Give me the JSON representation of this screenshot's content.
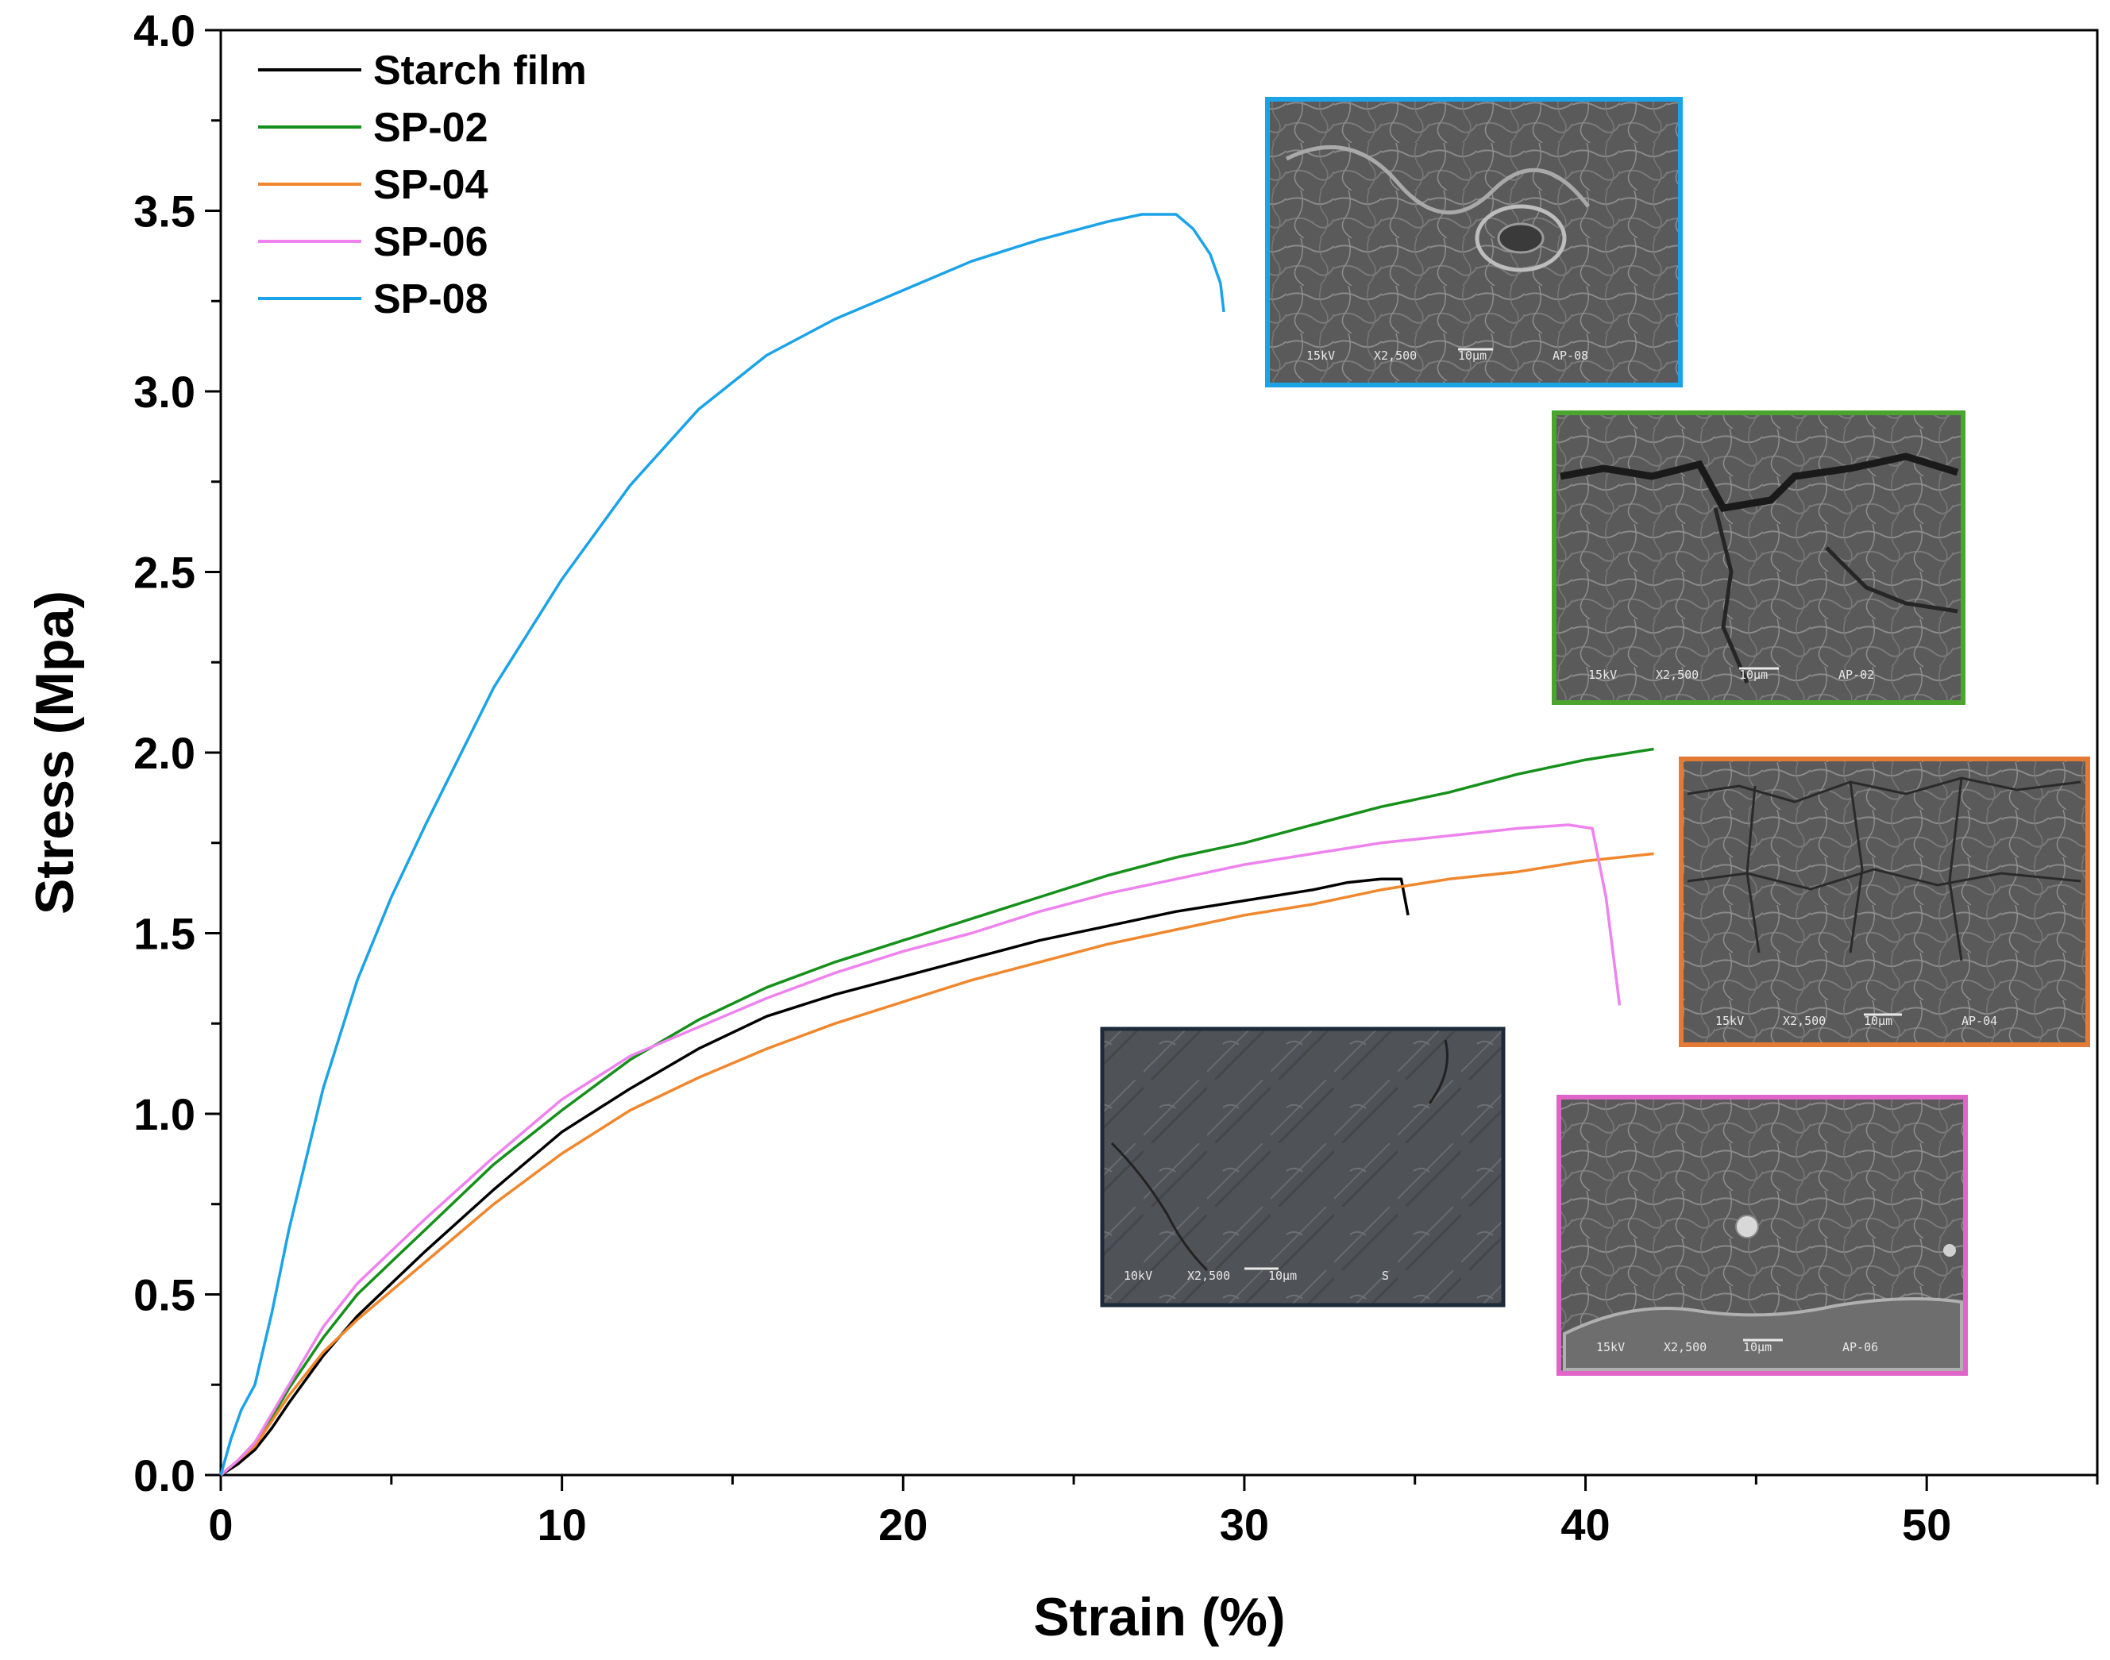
{
  "chart_data": {
    "type": "line",
    "title": "",
    "xlabel": "Strain (%)",
    "ylabel": "Stress (Mpa)",
    "xlim": [
      0,
      55
    ],
    "ylim": [
      0,
      4.0
    ],
    "x_ticks": [
      0,
      10,
      20,
      30,
      40,
      50
    ],
    "x_tick_labels": [
      "0",
      "10",
      "20",
      "30",
      "40",
      "50"
    ],
    "y_ticks": [
      0,
      0.5,
      1.0,
      1.5,
      2.0,
      2.5,
      3.0,
      3.5,
      4.0
    ],
    "y_tick_labels": [
      "0.0",
      "0.5",
      "1.0",
      "1.5",
      "2.0",
      "2.5",
      "3.0",
      "3.5",
      "4.0"
    ],
    "grid": false,
    "legend_position": "top-left",
    "series": [
      {
        "name": "Starch film",
        "color": "#000000",
        "x": [
          0,
          0.5,
          1,
          1.5,
          2,
          3,
          4,
          5,
          6,
          8,
          10,
          12,
          14,
          16,
          18,
          20,
          22,
          24,
          26,
          28,
          30,
          32,
          33,
          34,
          34.6,
          34.8
        ],
        "y": [
          0,
          0.03,
          0.07,
          0.13,
          0.2,
          0.33,
          0.44,
          0.53,
          0.62,
          0.79,
          0.95,
          1.07,
          1.18,
          1.27,
          1.33,
          1.38,
          1.43,
          1.48,
          1.52,
          1.56,
          1.59,
          1.62,
          1.64,
          1.65,
          1.65,
          1.55
        ]
      },
      {
        "name": "SP-02",
        "color": "#15901a",
        "x": [
          0,
          0.5,
          1,
          1.5,
          2,
          3,
          4,
          5,
          6,
          8,
          10,
          12,
          14,
          16,
          18,
          20,
          22,
          24,
          26,
          28,
          30,
          32,
          34,
          36,
          38,
          40,
          42
        ],
        "y": [
          0,
          0.04,
          0.09,
          0.16,
          0.24,
          0.38,
          0.5,
          0.59,
          0.68,
          0.86,
          1.01,
          1.15,
          1.26,
          1.35,
          1.42,
          1.48,
          1.54,
          1.6,
          1.66,
          1.71,
          1.75,
          1.8,
          1.85,
          1.89,
          1.94,
          1.98,
          2.01
        ]
      },
      {
        "name": "SP-04",
        "color": "#f0872c",
        "x": [
          0,
          0.5,
          1,
          1.5,
          2,
          3,
          4,
          5,
          6,
          8,
          10,
          12,
          14,
          16,
          18,
          20,
          22,
          24,
          26,
          28,
          30,
          32,
          34,
          36,
          38,
          40,
          42
        ],
        "y": [
          0,
          0.04,
          0.08,
          0.15,
          0.22,
          0.34,
          0.43,
          0.51,
          0.59,
          0.75,
          0.89,
          1.01,
          1.1,
          1.18,
          1.25,
          1.31,
          1.37,
          1.42,
          1.47,
          1.51,
          1.55,
          1.58,
          1.62,
          1.65,
          1.67,
          1.7,
          1.72
        ]
      },
      {
        "name": "SP-06",
        "color": "#ee82ee",
        "x": [
          0,
          0.5,
          1,
          1.5,
          2,
          3,
          4,
          5,
          6,
          8,
          10,
          12,
          14,
          16,
          18,
          20,
          22,
          24,
          26,
          28,
          30,
          32,
          34,
          36,
          38,
          39.5,
          40.2,
          40.6,
          41.0
        ],
        "y": [
          0,
          0.04,
          0.09,
          0.17,
          0.25,
          0.41,
          0.53,
          0.62,
          0.71,
          0.88,
          1.04,
          1.16,
          1.24,
          1.32,
          1.39,
          1.45,
          1.5,
          1.56,
          1.61,
          1.65,
          1.69,
          1.72,
          1.75,
          1.77,
          1.79,
          1.8,
          1.79,
          1.6,
          1.3
        ]
      },
      {
        "name": "SP-08",
        "color": "#1ba3e8",
        "x": [
          0,
          0.3,
          0.6,
          1,
          1.5,
          2,
          3,
          4,
          5,
          6,
          8,
          10,
          12,
          14,
          16,
          18,
          20,
          22,
          24,
          26,
          27,
          28,
          28.5,
          29,
          29.3,
          29.4
        ],
        "y": [
          0,
          0.1,
          0.18,
          0.25,
          0.45,
          0.68,
          1.07,
          1.37,
          1.6,
          1.8,
          2.18,
          2.48,
          2.74,
          2.95,
          3.1,
          3.2,
          3.28,
          3.36,
          3.42,
          3.47,
          3.49,
          3.49,
          3.45,
          3.38,
          3.3,
          3.22
        ]
      }
    ]
  },
  "insets": [
    {
      "name": "sem-inset-sp-08",
      "border_color": "#1ba3e8",
      "caption": [
        "15kV",
        "X2,500",
        "10µm",
        "AP-08"
      ]
    },
    {
      "name": "sem-inset-sp-02",
      "border_color": "#4aa52e",
      "caption": [
        "15kV",
        "X2,500",
        "10µm",
        "AP-02"
      ]
    },
    {
      "name": "sem-inset-sp-04",
      "border_color": "#e37b34",
      "caption": [
        "15kV",
        "X2,500",
        "10µm",
        "AP-04"
      ]
    },
    {
      "name": "sem-inset-starch",
      "border_color": "#1c2a3a",
      "caption": [
        "10kV",
        "X2,500",
        "10µm",
        "S"
      ]
    },
    {
      "name": "sem-inset-sp-06",
      "border_color": "#e065c8",
      "caption": [
        "15kV",
        "X2,500",
        "10µm",
        "AP-06"
      ]
    }
  ]
}
